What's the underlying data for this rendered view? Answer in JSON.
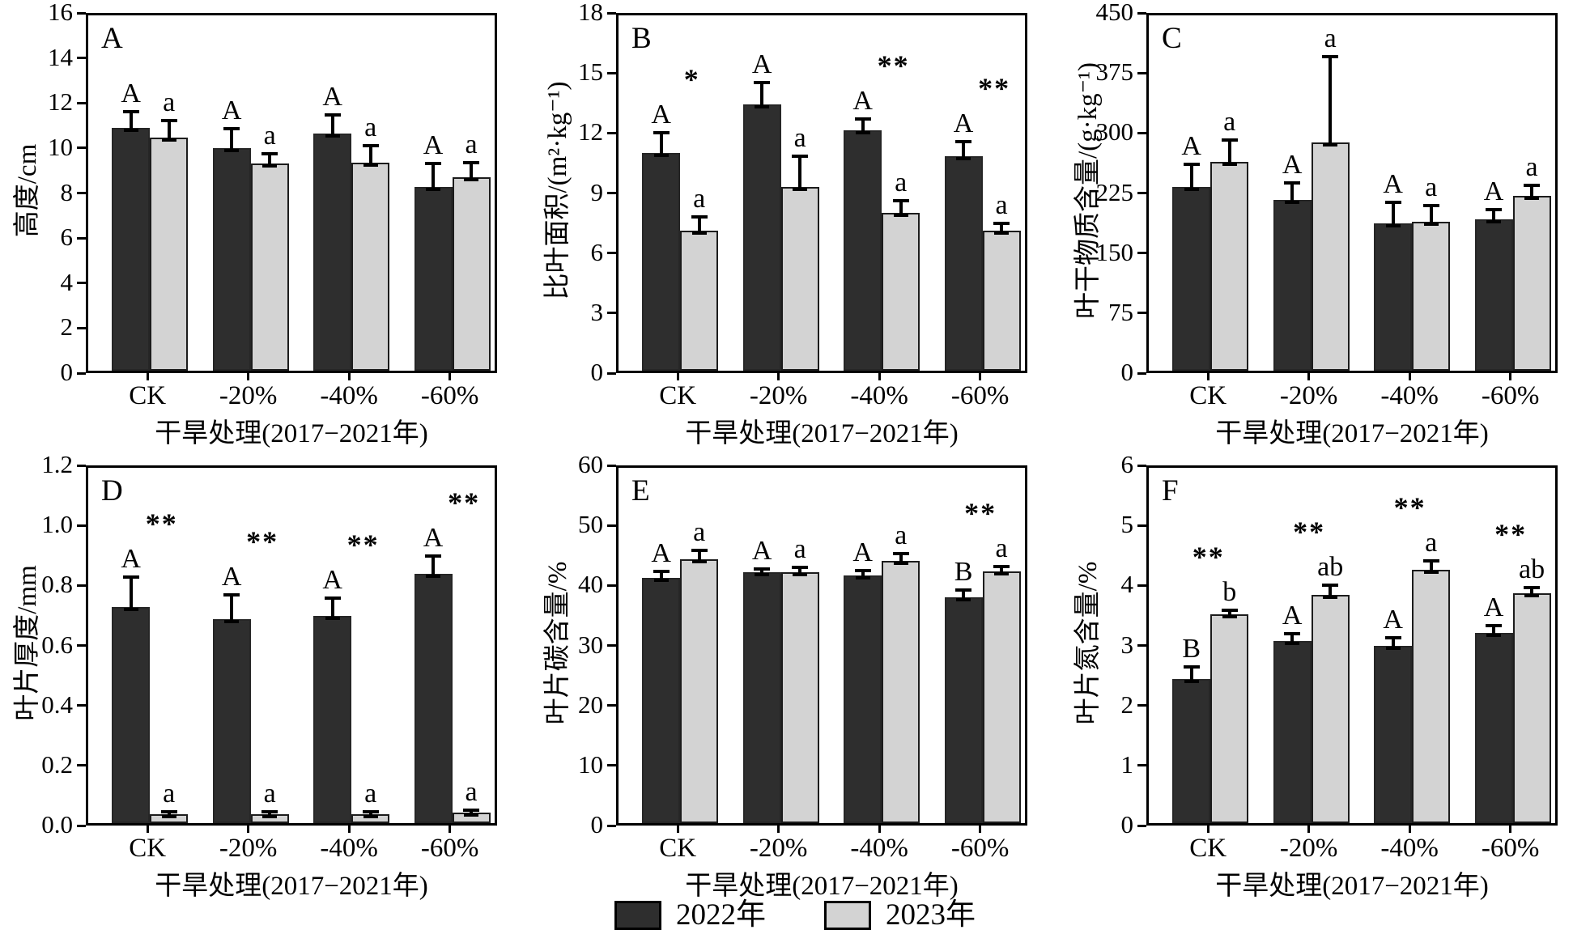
{
  "colors": {
    "series_2022": "#2e2e2e",
    "series_2023": "#d3d3d3",
    "axis": "#000000",
    "background": "#ffffff"
  },
  "legend": {
    "items": [
      {
        "label": "2022年",
        "color_key": "series_2022"
      },
      {
        "label": "2023年",
        "color_key": "series_2023"
      }
    ]
  },
  "chart_data": [
    {
      "type": "bar",
      "panel": "A",
      "ylabel": "高度/cm",
      "xlabel": "干旱处理(2017−2021年)",
      "ylim": [
        0,
        16
      ],
      "yticks": [
        0,
        2,
        4,
        6,
        8,
        10,
        12,
        14,
        16
      ],
      "ytick_labels": [
        "0",
        "2",
        "4",
        "6",
        "8",
        "10",
        "12",
        "14",
        "16"
      ],
      "categories": [
        "CK",
        "-20%",
        "-40%",
        "-60%"
      ],
      "series": [
        {
          "name": "2022年",
          "values": [
            10.8,
            9.9,
            10.55,
            8.15
          ],
          "errors": [
            0.7,
            0.85,
            0.8,
            1.05
          ],
          "letters": [
            "A",
            "A",
            "A",
            "A"
          ]
        },
        {
          "name": "2023年",
          "values": [
            10.35,
            9.2,
            9.25,
            8.6
          ],
          "errors": [
            0.75,
            0.45,
            0.75,
            0.65
          ],
          "letters": [
            "a",
            "a",
            "a",
            "a"
          ]
        }
      ],
      "significance": [
        null,
        null,
        null,
        null
      ]
    },
    {
      "type": "bar",
      "panel": "B",
      "ylabel": "比叶面积/(m²·kg⁻¹)",
      "xlabel": "干旱处理(2017−2021年)",
      "ylim": [
        0,
        18
      ],
      "yticks": [
        0,
        3,
        6,
        9,
        12,
        15,
        18
      ],
      "ytick_labels": [
        "0",
        "3",
        "6",
        "9",
        "12",
        "15",
        "18"
      ],
      "categories": [
        "CK",
        "-20%",
        "-40%",
        "-60%"
      ],
      "series": [
        {
          "name": "2022年",
          "values": [
            10.9,
            13.3,
            12.0,
            10.7
          ],
          "errors": [
            1.0,
            1.1,
            0.6,
            0.75
          ],
          "letters": [
            "A",
            "A",
            "A",
            "A"
          ]
        },
        {
          "name": "2023年",
          "values": [
            7.0,
            9.2,
            7.9,
            7.0
          ],
          "errors": [
            0.7,
            1.5,
            0.6,
            0.35
          ],
          "letters": [
            "a",
            "a",
            "a",
            "a"
          ]
        }
      ],
      "significance": [
        {
          "text": "*",
          "over_series": 0
        },
        null,
        {
          "text": "**",
          "over_series": 0
        },
        {
          "text": "**",
          "over_series": 0
        }
      ]
    },
    {
      "type": "bar",
      "panel": "C",
      "ylabel": "叶干物质含量/(g·kg⁻¹)",
      "xlabel": "干旱处理(2017−2021年)",
      "ylim": [
        0,
        450
      ],
      "yticks": [
        0,
        75,
        150,
        225,
        300,
        375,
        450
      ],
      "ytick_labels": [
        "0",
        "75",
        "150",
        "225",
        "300",
        "375",
        "450"
      ],
      "categories": [
        "CK",
        "-20%",
        "-40%",
        "-60%"
      ],
      "series": [
        {
          "name": "2022年",
          "values": [
            230,
            213,
            184,
            189
          ],
          "errors": [
            28,
            22,
            26,
            12
          ],
          "letters": [
            "A",
            "A",
            "A",
            "A"
          ]
        },
        {
          "name": "2023年",
          "values": [
            261,
            285,
            186,
            218
          ],
          "errors": [
            27,
            107,
            20,
            14
          ],
          "letters": [
            "a",
            "a",
            "a",
            "a"
          ]
        }
      ],
      "significance": [
        null,
        null,
        null,
        null
      ]
    },
    {
      "type": "bar",
      "panel": "D",
      "ylabel": "叶片厚度/mm",
      "xlabel": "干旱处理(2017−2021年)",
      "ylim": [
        0,
        1.2
      ],
      "yticks": [
        0,
        0.2,
        0.4,
        0.6,
        0.8,
        1.0,
        1.2
      ],
      "ytick_labels": [
        "0.0",
        "0.2",
        "0.4",
        "0.6",
        "0.8",
        "1.0",
        "1.2"
      ],
      "categories": [
        "CK",
        "-20%",
        "-40%",
        "-60%"
      ],
      "series": [
        {
          "name": "2022年",
          "values": [
            0.72,
            0.68,
            0.69,
            0.83
          ],
          "errors": [
            0.1,
            0.08,
            0.06,
            0.06
          ],
          "letters": [
            "A",
            "A",
            "A",
            "A"
          ]
        },
        {
          "name": "2023年",
          "values": [
            0.03,
            0.03,
            0.03,
            0.035
          ],
          "errors": [
            0.008,
            0.008,
            0.008,
            0.008
          ],
          "letters": [
            "a",
            "a",
            "a",
            "a"
          ]
        }
      ],
      "significance": [
        {
          "text": "**",
          "over_series": 0
        },
        {
          "text": "**",
          "over_series": 0
        },
        {
          "text": "**",
          "over_series": 0
        },
        {
          "text": "**",
          "over_series": 0
        }
      ]
    },
    {
      "type": "bar",
      "panel": "E",
      "ylabel": "叶片碳含量/%",
      "xlabel": "干旱处理(2017−2021年)",
      "ylim": [
        0,
        60
      ],
      "yticks": [
        0,
        10,
        20,
        30,
        40,
        50,
        60
      ],
      "ytick_labels": [
        "0",
        "10",
        "20",
        "30",
        "40",
        "50",
        "60"
      ],
      "categories": [
        "CK",
        "-20%",
        "-40%",
        "-60%"
      ],
      "series": [
        {
          "name": "2022年",
          "values": [
            40.8,
            41.8,
            41.2,
            37.6
          ],
          "errors": [
            1.2,
            0.5,
            0.9,
            1.2
          ],
          "letters": [
            "A",
            "A",
            "A",
            "B"
          ]
        },
        {
          "name": "2023年",
          "values": [
            44.0,
            41.8,
            43.7,
            42.0
          ],
          "errors": [
            1.5,
            0.8,
            1.2,
            0.8
          ],
          "letters": [
            "a",
            "a",
            "a",
            "a"
          ]
        }
      ],
      "significance": [
        null,
        null,
        null,
        {
          "text": "**",
          "over_series": 1
        }
      ]
    },
    {
      "type": "bar",
      "panel": "F",
      "ylabel": "叶片氮含量/%",
      "xlabel": "干旱处理(2017−2021年)",
      "ylim": [
        0,
        6
      ],
      "yticks": [
        0,
        1,
        2,
        3,
        4,
        5,
        6
      ],
      "ytick_labels": [
        "0",
        "1",
        "2",
        "3",
        "4",
        "5",
        "6"
      ],
      "categories": [
        "CK",
        "-20%",
        "-40%",
        "-60%"
      ],
      "series": [
        {
          "name": "2022年",
          "values": [
            2.4,
            3.03,
            2.95,
            3.17
          ],
          "errors": [
            0.2,
            0.13,
            0.14,
            0.12
          ],
          "letters": [
            "B",
            "A",
            "A",
            "A"
          ]
        },
        {
          "name": "2023年",
          "values": [
            3.48,
            3.8,
            4.22,
            3.83
          ],
          "errors": [
            0.06,
            0.17,
            0.15,
            0.1
          ],
          "letters": [
            "b",
            "ab",
            "a",
            "ab"
          ]
        }
      ],
      "significance": [
        {
          "text": "**",
          "over_series": 1
        },
        {
          "text": "**",
          "over_series": 1
        },
        {
          "text": "**",
          "over_series": 1
        },
        {
          "text": "**",
          "over_series": 1
        }
      ]
    }
  ]
}
